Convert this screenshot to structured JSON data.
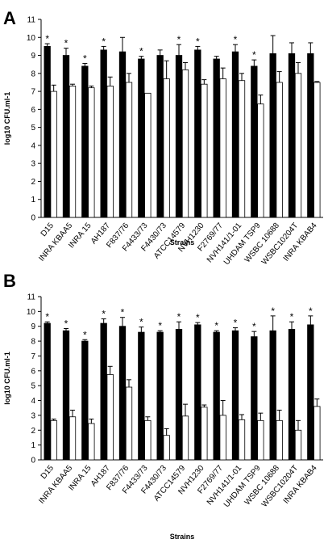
{
  "chart_data": [
    {
      "type": "bar",
      "panel": "A",
      "title": "",
      "xlabel": "Strains",
      "ylabel": "log10 CFU.ml-1",
      "ylim": [
        0,
        11
      ],
      "yticks": [
        "0",
        "1",
        "2",
        "3",
        "4",
        "5",
        "6",
        "7",
        "8",
        "9",
        "10",
        "11"
      ],
      "grid": false,
      "legend": "none",
      "categories": [
        "D15",
        "INRA KBAA5",
        "INRA 15",
        "AH187",
        "F837/76",
        "F4433/73",
        "F4430/73",
        "ATCC14579",
        "NVH1230",
        "F2769/77",
        "NVH141/1-01",
        "UHDAM TSP9",
        "WSBC 10688",
        "WSBC10204T",
        "INRA KBAB4"
      ],
      "series": [
        {
          "fill": "#000000",
          "values": [
            9.5,
            9.0,
            8.4,
            9.3,
            9.2,
            8.8,
            9.0,
            9.0,
            9.3,
            8.8,
            9.2,
            8.4,
            9.1,
            9.1,
            9.1
          ],
          "errors": [
            0.15,
            0.4,
            0.15,
            0.2,
            0.8,
            0.15,
            0.3,
            0.6,
            0.2,
            0.15,
            0.4,
            0.35,
            1.0,
            0.6,
            0.6
          ]
        },
        {
          "fill": "#ffffff",
          "values": [
            7.0,
            7.3,
            7.2,
            7.3,
            7.5,
            6.9,
            7.7,
            8.2,
            7.4,
            7.7,
            7.6,
            6.3,
            7.5,
            8.0,
            7.5
          ],
          "errors": [
            0.35,
            0.1,
            0.1,
            0.5,
            0.5,
            0.0,
            1.0,
            0.4,
            0.25,
            0.6,
            0.4,
            0.5,
            0.6,
            0.6,
            0.05
          ]
        }
      ],
      "significant": [
        true,
        true,
        true,
        true,
        false,
        true,
        false,
        true,
        true,
        false,
        true,
        true,
        false,
        false,
        false
      ],
      "marker_label": "*"
    },
    {
      "type": "bar",
      "panel": "B",
      "title": "",
      "xlabel": "Strains",
      "ylabel": "log10 CFU.ml-1",
      "ylim": [
        0,
        11
      ],
      "yticks": [
        "0",
        "1",
        "2",
        "3",
        "4",
        "5",
        "6",
        "7",
        "8",
        "9",
        "10",
        "11"
      ],
      "grid": false,
      "legend": "none",
      "categories": [
        "D15",
        "INRA KBAA5",
        "INRA 15",
        "AH187",
        "F837/76",
        "F4433/73",
        "F4430/73",
        "ATCC14579",
        "NVH1230",
        "F2769/77",
        "NVH141/1-01",
        "UHDAM TSP9",
        "WSBC 10688",
        "WSBC10204T",
        "INRA KBAB4"
      ],
      "series": [
        {
          "fill": "#000000",
          "values": [
            9.2,
            8.7,
            8.0,
            9.2,
            9.0,
            8.6,
            8.6,
            8.8,
            9.1,
            8.6,
            8.7,
            8.3,
            8.7,
            8.8,
            9.1
          ],
          "errors": [
            0.1,
            0.15,
            0.1,
            0.3,
            0.6,
            0.35,
            0.1,
            0.5,
            0.15,
            0.1,
            0.2,
            0.35,
            1.0,
            0.5,
            0.6
          ]
        },
        {
          "fill": "#ffffff",
          "values": [
            2.65,
            2.9,
            2.45,
            5.75,
            4.9,
            2.65,
            1.65,
            2.95,
            3.55,
            3.0,
            2.7,
            2.65,
            2.65,
            2.0,
            3.6
          ],
          "errors": [
            0.1,
            0.45,
            0.3,
            0.55,
            0.5,
            0.25,
            0.45,
            0.8,
            0.15,
            1.0,
            0.35,
            0.5,
            0.7,
            0.65,
            0.5
          ]
        }
      ],
      "significant": [
        true,
        true,
        true,
        true,
        true,
        true,
        true,
        true,
        true,
        true,
        true,
        true,
        true,
        true,
        true
      ],
      "marker_label": "*"
    }
  ]
}
